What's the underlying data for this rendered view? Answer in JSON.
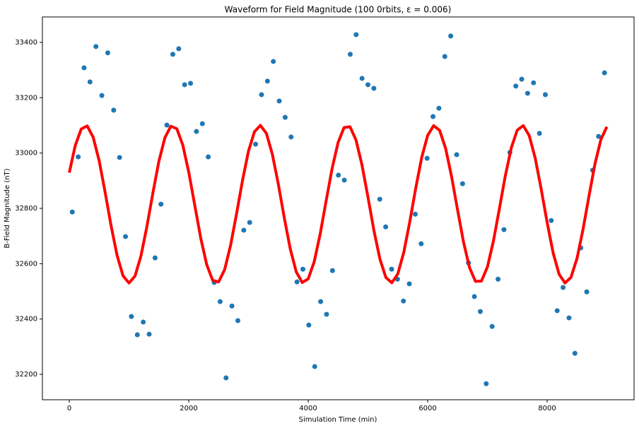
{
  "chart_data": {
    "type": "scatter",
    "title": "Waveform for Field Magnitude (100 0rbits, ε = 0.006)",
    "x_label": "Simulation Time (min)",
    "y_label": "B-Field Magnitude (nT)",
    "xlim": [
      -450,
      9455
    ],
    "ylim": [
      32108,
      33492
    ],
    "xticks": [
      0,
      2000,
      4000,
      6000,
      8000
    ],
    "yticks": [
      32200,
      32400,
      32600,
      32800,
      33000,
      33200,
      33400
    ],
    "series": [
      {
        "type": "scatter",
        "color": "#1f77b4",
        "x": [
          50,
          149,
          248,
          347,
          446,
          545,
          644,
          743,
          842,
          941,
          1040,
          1139,
          1238,
          1337,
          1436,
          1535,
          1634,
          1733,
          1832,
          1931,
          2030,
          2129,
          2228,
          2327,
          2426,
          2525,
          2624,
          2723,
          2822,
          2921,
          3020,
          3119,
          3218,
          3317,
          3416,
          3515,
          3614,
          3713,
          3812,
          3911,
          4010,
          4109,
          4208,
          4307,
          4406,
          4505,
          4604,
          4703,
          4802,
          4901,
          5000,
          5099,
          5198,
          5297,
          5396,
          5495,
          5594,
          5693,
          5792,
          5891,
          5990,
          6089,
          6188,
          6287,
          6386,
          6485,
          6584,
          6683,
          6782,
          6881,
          6980,
          7079,
          7178,
          7277,
          7376,
          7475,
          7574,
          7673,
          7772,
          7871,
          7970,
          8069,
          8168,
          8267,
          8366,
          8465,
          8564,
          8663,
          8762,
          8861,
          8960
        ],
        "values": [
          32787,
          32986,
          33308,
          33257,
          33385,
          33208,
          33362,
          33155,
          32984,
          32698,
          32409,
          32343,
          32389,
          32345,
          32621,
          32815,
          33101,
          33357,
          33377,
          33247,
          33252,
          33078,
          33106,
          32986,
          32532,
          32463,
          32187,
          32447,
          32394,
          32721,
          32749,
          33032,
          33211,
          33260,
          33331,
          33188,
          33129,
          33058,
          32534,
          32580,
          32378,
          32228,
          32463,
          32417,
          32575,
          32920,
          32902,
          33357,
          33428,
          33270,
          33247,
          33234,
          32833,
          32733,
          32580,
          32544,
          32465,
          32527,
          32779,
          32672,
          32981,
          33132,
          33162,
          33349,
          33423,
          32994,
          32889,
          32603,
          32481,
          32427,
          32166,
          32373,
          32544,
          32723,
          33002,
          33242,
          33267,
          33216,
          33254,
          33071,
          33211,
          32756,
          32430,
          32514,
          32404,
          32276,
          32657,
          32498,
          32938,
          33060,
          33290
        ]
      },
      {
        "type": "line",
        "color": "#ff0000",
        "x": [
          0,
          100,
          200,
          300,
          400,
          500,
          600,
          700,
          800,
          900,
          1000,
          1100,
          1200,
          1300,
          1400,
          1500,
          1600,
          1700,
          1800,
          1900,
          2000,
          2100,
          2200,
          2300,
          2400,
          2500,
          2600,
          2700,
          2800,
          2900,
          3000,
          3100,
          3200,
          3300,
          3400,
          3500,
          3600,
          3700,
          3800,
          3900,
          4000,
          4100,
          4200,
          4300,
          4400,
          4500,
          4600,
          4700,
          4800,
          4900,
          5000,
          5100,
          5200,
          5300,
          5400,
          5500,
          5600,
          5700,
          5800,
          5900,
          6000,
          6100,
          6200,
          6300,
          6400,
          6500,
          6600,
          6700,
          6800,
          6900,
          7000,
          7100,
          7200,
          7300,
          7400,
          7500,
          7600,
          7700,
          7800,
          7900,
          8000,
          8100,
          8200,
          8300,
          8400,
          8500,
          8600,
          8700,
          8800,
          8900,
          9000
        ],
        "values": [
          32929,
          33027,
          33087,
          33098,
          33057,
          32972,
          32858,
          32737,
          32630,
          32556,
          32530,
          32555,
          32628,
          32735,
          32856,
          32970,
          33055,
          33097,
          33088,
          33029,
          32931,
          32812,
          32693,
          32597,
          32540,
          32534,
          32578,
          32666,
          32780,
          32901,
          33007,
          33077,
          33100,
          33071,
          32995,
          32887,
          32765,
          32653,
          32570,
          32532,
          32545,
          32607,
          32707,
          32827,
          32944,
          33038,
          33092,
          33095,
          33047,
          32957,
          32841,
          32720,
          32617,
          32550,
          32531,
          32563,
          32641,
          32751,
          32873,
          32984,
          33064,
          33099,
          33082,
          33017,
          32915,
          32795,
          32678,
          32586,
          32536,
          32537,
          32588,
          32681,
          32798,
          32918,
          33019,
          33083,
          33099,
          33063,
          32982,
          32870,
          32749,
          32639,
          32562,
          32530,
          32551,
          32619,
          32723,
          32844,
          32960,
          33049,
          33095
        ]
      }
    ]
  }
}
